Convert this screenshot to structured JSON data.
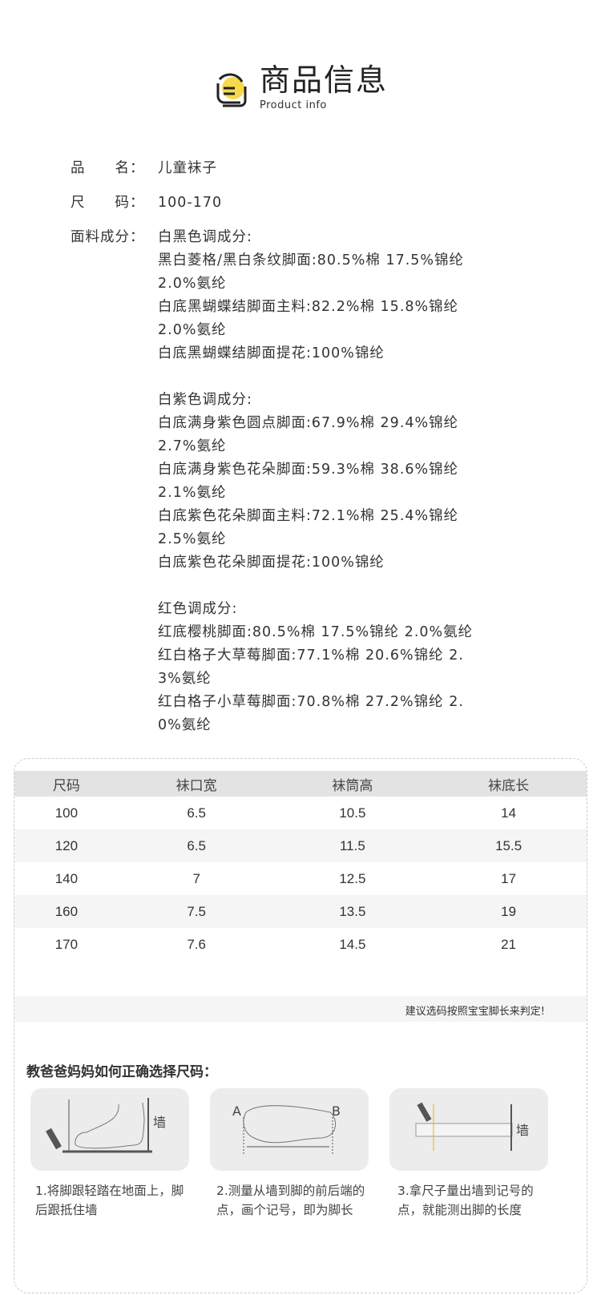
{
  "header": {
    "title": "商品信息",
    "subtitle": "Product info",
    "accent": "#f7d94c"
  },
  "info": {
    "name_label": "品　　名：",
    "name_value": "儿童袜子",
    "size_label": "尺　　码：",
    "size_value": "100-170",
    "material_label": "面料成分：",
    "material_lines": [
      "白黑色调成分:",
      "黑白菱格/黑白条纹脚面:80.5%棉 17.5%锦纶",
      "2.0%氨纶",
      "白底黑蝴蝶结脚面主料:82.2%棉 15.8%锦纶",
      "2.0%氨纶",
      "白底黑蝴蝶结脚面提花:100%锦纶",
      "",
      "白紫色调成分:",
      "白底满身紫色圆点脚面:67.9%棉 29.4%锦纶",
      "2.7%氨纶",
      "白底满身紫色花朵脚面:59.3%棉 38.6%锦纶",
      "2.1%氨纶",
      "白底紫色花朵脚面主料:72.1%棉 25.4%锦纶",
      "2.5%氨纶",
      "白底紫色花朵脚面提花:100%锦纶",
      "",
      "红色调成分:",
      "红底樱桃脚面:80.5%棉 17.5%锦纶 2.0%氨纶",
      "红白格子大草莓脚面:77.1%棉 20.6%锦纶 2.",
      "3%氨纶",
      "红白格子小草莓脚面:70.8%棉 27.2%锦纶 2.",
      "0%氨纶"
    ]
  },
  "size_table": {
    "headers": [
      "尺码",
      "袜口宽",
      "袜筒高",
      "袜底长"
    ],
    "rows": [
      [
        "100",
        "6.5",
        "10.5",
        "14"
      ],
      [
        "120",
        "6.5",
        "11.5",
        "15.5"
      ],
      [
        "140",
        "7",
        "12.5",
        "17"
      ],
      [
        "160",
        "7.5",
        "13.5",
        "19"
      ],
      [
        "170",
        "7.6",
        "14.5",
        "21"
      ]
    ],
    "note": "建议选码按照宝宝脚长来判定!"
  },
  "guide": {
    "title": "教爸爸妈妈如何正确选择尺码：",
    "wall_label": "墙",
    "point_a": "A",
    "point_b": "B",
    "steps": [
      "1.将脚跟轻踏在地面上，脚后跟抵住墙",
      "2.测量从墙到脚的前后端的点，画个记号，即为脚长",
      "3.拿尺子量出墙到记号的点，就能测出脚的长度"
    ]
  }
}
